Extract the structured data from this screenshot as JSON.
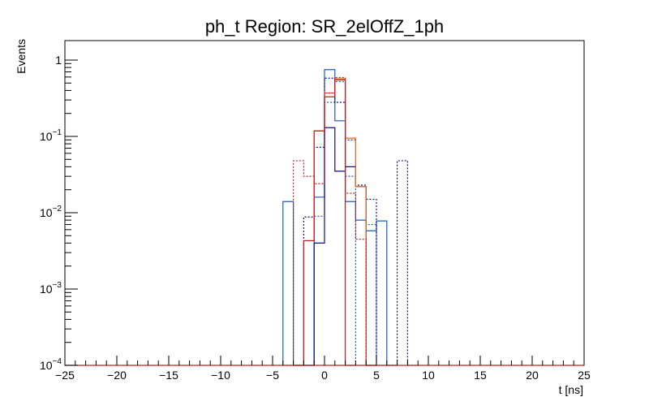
{
  "chart_data": {
    "type": "histogram",
    "title": "ph_t Region: SR_2elOffZ_1ph",
    "xlabel": "t [ns]",
    "ylabel": "Events",
    "xlim": [
      -25,
      25
    ],
    "ylim": [
      0.0001,
      1.8
    ],
    "yscale": "log",
    "bin_width": 1,
    "x_ticks": [
      -25,
      -20,
      -15,
      -10,
      -5,
      0,
      5,
      10,
      15,
      20,
      25
    ],
    "x_tick_labels": [
      "−25",
      "−20",
      "−15",
      "−10",
      "−5",
      "0",
      "5",
      "10",
      "15",
      "20",
      "25"
    ],
    "y_ticks": [
      {
        "value": 0.0001,
        "base": "10",
        "exp": "−4"
      },
      {
        "value": 0.001,
        "base": "10",
        "exp": "−3"
      },
      {
        "value": 0.01,
        "base": "10",
        "exp": "−2"
      },
      {
        "value": 0.1,
        "base": "10",
        "exp": "−1"
      },
      {
        "value": 1,
        "base": "1",
        "exp": ""
      }
    ],
    "series": [
      {
        "color": "#1f5bb5",
        "dash": false,
        "bins": [
          [
            -4,
            0.014
          ],
          [
            -3,
            0.0001
          ],
          [
            -2,
            0.0001
          ],
          [
            -1,
            0.016
          ],
          [
            0,
            0.75
          ],
          [
            1,
            0.16
          ],
          [
            2,
            0.014
          ],
          [
            3,
            0.008
          ],
          [
            4,
            0.0058
          ],
          [
            5,
            0.0078
          ],
          [
            6,
            0.0001
          ]
        ]
      },
      {
        "color": "#1f5bb5",
        "dash": true,
        "bins": [
          [
            -1,
            0.009
          ],
          [
            0,
            0.28
          ],
          [
            1,
            0.52
          ],
          [
            2,
            0.03
          ],
          [
            4,
            0.007
          ]
        ]
      },
      {
        "color": "#10107a",
        "dash": false,
        "bins": [
          [
            -2,
            0.0001
          ],
          [
            -1,
            0.004
          ],
          [
            0,
            0.13
          ],
          [
            1,
            0.035
          ],
          [
            2,
            0.04
          ],
          [
            3,
            0.022
          ],
          [
            4,
            0.0001
          ]
        ]
      },
      {
        "color": "#10107a",
        "dash": true,
        "bins": [
          [
            -2,
            0.0088
          ],
          [
            -1,
            0.072
          ],
          [
            0,
            0.58
          ],
          [
            1,
            0.28
          ],
          [
            2,
            0.09
          ],
          [
            3,
            0.023
          ],
          [
            4,
            0.015
          ],
          [
            5,
            0.0001
          ],
          [
            6,
            0.0001
          ],
          [
            7,
            0.048
          ],
          [
            8,
            0.0001
          ]
        ]
      },
      {
        "color": "#e0701a",
        "dash": false,
        "bins": [
          [
            -3,
            0.0001
          ],
          [
            -2,
            0.0043
          ],
          [
            -1,
            0.118
          ],
          [
            0,
            0.37
          ],
          [
            1,
            0.57
          ],
          [
            2,
            0.095
          ],
          [
            3,
            0.022
          ],
          [
            4,
            0.0001
          ]
        ]
      },
      {
        "color": "#cc1a1a",
        "dash": false,
        "bins": [
          [
            -3,
            0.0001
          ],
          [
            -2,
            0.0043
          ],
          [
            -1,
            0.118
          ],
          [
            0,
            0.33
          ],
          [
            1,
            0.55
          ],
          [
            2,
            0.0001
          ]
        ]
      },
      {
        "color": "#cc1a1a",
        "dash": true,
        "bins": [
          [
            -4,
            0.0001
          ],
          [
            -3,
            0.048
          ],
          [
            -2,
            0.03
          ],
          [
            -1,
            0.024
          ],
          [
            0,
            0.37
          ],
          [
            1,
            0.59
          ],
          [
            2,
            0.018
          ],
          [
            3,
            0.0045
          ],
          [
            4,
            0.0001
          ]
        ]
      }
    ]
  }
}
